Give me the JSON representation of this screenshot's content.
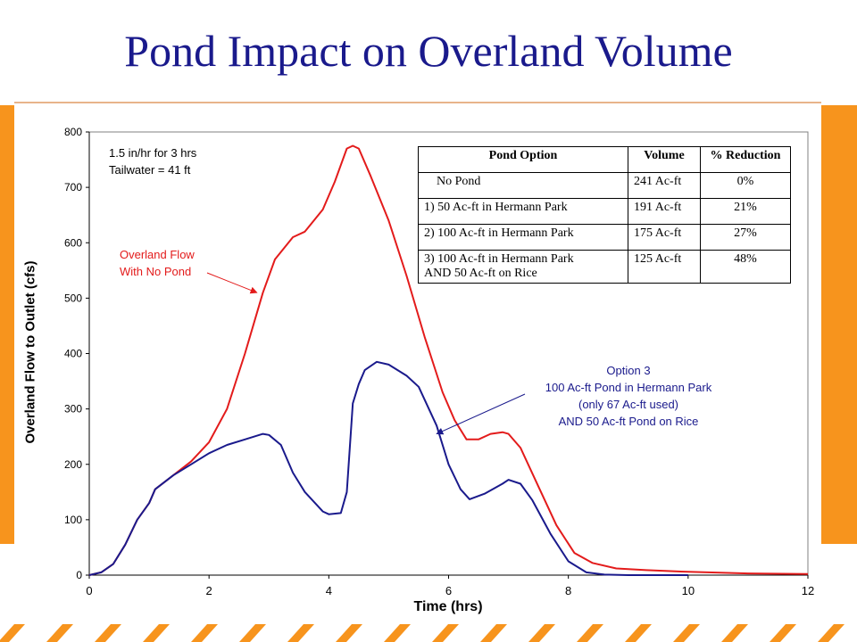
{
  "title": "Pond Impact on Overland Volume",
  "chart_data": {
    "type": "line",
    "xlabel": "Time (hrs)",
    "ylabel": "Overland Flow to Outlet (cfs)",
    "xlim": [
      0,
      12
    ],
    "ylim": [
      0,
      800
    ],
    "x_ticks": [
      "0",
      "2",
      "4",
      "6",
      "8",
      "10",
      "12"
    ],
    "y_ticks": [
      "0",
      "100",
      "200",
      "300",
      "400",
      "500",
      "600",
      "700",
      "800"
    ],
    "grid": false,
    "series": [
      {
        "name": "Overland Flow With No Pond",
        "color": "#e31b1b",
        "points": [
          [
            0,
            0
          ],
          [
            0.2,
            5
          ],
          [
            0.4,
            20
          ],
          [
            0.6,
            55
          ],
          [
            0.8,
            100
          ],
          [
            1.0,
            130
          ],
          [
            1.1,
            155
          ],
          [
            1.4,
            180
          ],
          [
            1.7,
            205
          ],
          [
            2.0,
            240
          ],
          [
            2.3,
            300
          ],
          [
            2.6,
            400
          ],
          [
            2.9,
            510
          ],
          [
            3.1,
            570
          ],
          [
            3.4,
            610
          ],
          [
            3.6,
            620
          ],
          [
            3.9,
            660
          ],
          [
            4.1,
            710
          ],
          [
            4.3,
            770
          ],
          [
            4.4,
            775
          ],
          [
            4.5,
            770
          ],
          [
            4.7,
            720
          ],
          [
            5.0,
            640
          ],
          [
            5.3,
            540
          ],
          [
            5.6,
            430
          ],
          [
            5.9,
            330
          ],
          [
            6.1,
            280
          ],
          [
            6.3,
            245
          ],
          [
            6.5,
            245
          ],
          [
            6.7,
            255
          ],
          [
            6.9,
            258
          ],
          [
            7.0,
            255
          ],
          [
            7.2,
            230
          ],
          [
            7.5,
            160
          ],
          [
            7.8,
            90
          ],
          [
            8.1,
            40
          ],
          [
            8.4,
            22
          ],
          [
            8.8,
            12
          ],
          [
            9.3,
            9
          ],
          [
            10.0,
            6
          ],
          [
            11.0,
            3
          ],
          [
            12.0,
            2
          ]
        ]
      },
      {
        "name": "Option 3",
        "color": "#1a1a8c",
        "points": [
          [
            0,
            0
          ],
          [
            0.2,
            5
          ],
          [
            0.4,
            20
          ],
          [
            0.6,
            55
          ],
          [
            0.8,
            100
          ],
          [
            1.0,
            130
          ],
          [
            1.1,
            155
          ],
          [
            1.4,
            180
          ],
          [
            1.7,
            200
          ],
          [
            2.0,
            220
          ],
          [
            2.3,
            235
          ],
          [
            2.6,
            245
          ],
          [
            2.9,
            255
          ],
          [
            3.0,
            253
          ],
          [
            3.2,
            235
          ],
          [
            3.4,
            185
          ],
          [
            3.6,
            150
          ],
          [
            3.9,
            115
          ],
          [
            4.0,
            110
          ],
          [
            4.2,
            112
          ],
          [
            4.3,
            150
          ],
          [
            4.4,
            310
          ],
          [
            4.5,
            345
          ],
          [
            4.6,
            370
          ],
          [
            4.8,
            385
          ],
          [
            5.0,
            380
          ],
          [
            5.3,
            360
          ],
          [
            5.5,
            340
          ],
          [
            5.8,
            270
          ],
          [
            6.0,
            200
          ],
          [
            6.2,
            155
          ],
          [
            6.35,
            137
          ],
          [
            6.6,
            147
          ],
          [
            6.9,
            165
          ],
          [
            7.0,
            172
          ],
          [
            7.2,
            165
          ],
          [
            7.4,
            135
          ],
          [
            7.7,
            75
          ],
          [
            8.0,
            25
          ],
          [
            8.3,
            5
          ],
          [
            8.6,
            1
          ],
          [
            9.0,
            0
          ],
          [
            10.0,
            0
          ]
        ]
      }
    ]
  },
  "annotations": {
    "conditions_line1": "1.5 in/hr for 3 hrs",
    "conditions_line2": "Tailwater = 41 ft",
    "no_pond_line1": "Overland Flow",
    "no_pond_line2": "With No Pond",
    "option3_line1": "Option 3",
    "option3_line2": "100 Ac-ft Pond in Hermann Park",
    "option3_line3": "(only 67 Ac-ft used)",
    "option3_line4": "AND   50 Ac-ft Pond on Rice"
  },
  "table": {
    "headers": [
      "Pond Option",
      "Volume",
      "% Reduction"
    ],
    "rows": [
      {
        "option": "No Pond",
        "volume": "241 Ac-ft",
        "reduction": "0%"
      },
      {
        "option": "1) 50 Ac-ft in Hermann Park",
        "volume": "191 Ac-ft",
        "reduction": "21%"
      },
      {
        "option": "2) 100 Ac-ft in Hermann Park",
        "volume": "175 Ac-ft",
        "reduction": "27%"
      },
      {
        "option": "3) 100 Ac-ft in Hermann Park",
        "option_line2": "AND 50 Ac-ft on Rice",
        "volume": "125 Ac-ft",
        "reduction": "48%"
      }
    ]
  },
  "colors": {
    "accent": "#f7941d",
    "title": "#1a1a8c",
    "no_pond": "#e31b1b",
    "option3": "#1a1a8c"
  }
}
